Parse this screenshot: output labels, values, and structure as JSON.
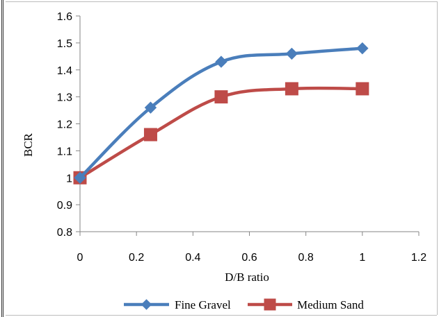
{
  "chart_data": {
    "type": "line",
    "xlabel": "D/B ratio",
    "ylabel": "BCR",
    "xlim": [
      0,
      1.2
    ],
    "ylim": [
      0.8,
      1.6
    ],
    "xticks": [
      "0",
      "0.2",
      "0.4",
      "0.6",
      "0.8",
      "1",
      "1.2"
    ],
    "yticks": [
      "0.8",
      "0.9",
      "1",
      "1.1",
      "1.2",
      "1.3",
      "1.4",
      "1.5",
      "1.6"
    ],
    "grid": false,
    "legend_position": "bottom",
    "series": [
      {
        "name": "Fine Gravel",
        "color": "#4a7ebb",
        "marker": "diamond",
        "x": [
          0,
          0.25,
          0.5,
          0.75,
          1
        ],
        "y": [
          1.0,
          1.26,
          1.43,
          1.46,
          1.48
        ]
      },
      {
        "name": "Medium Sand",
        "color": "#be4b48",
        "marker": "square",
        "x": [
          0,
          0.25,
          0.5,
          0.75,
          1
        ],
        "y": [
          1.0,
          1.16,
          1.3,
          1.33,
          1.33
        ]
      }
    ]
  }
}
